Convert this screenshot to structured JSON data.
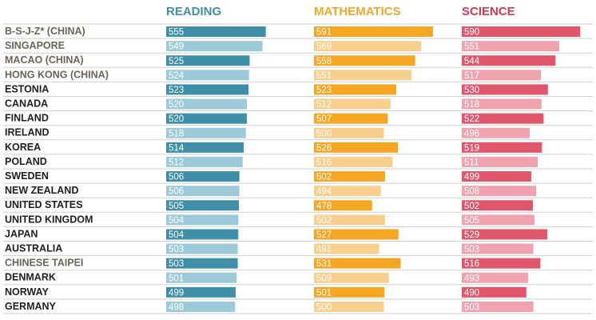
{
  "chart_data": {
    "type": "bar",
    "title": "",
    "xlabel": "",
    "ylabel": "",
    "columns": [
      {
        "key": "reading",
        "label": "READING",
        "color": "#3f8fa8",
        "light": "#9dcad8",
        "header_color": "#3f8fa8"
      },
      {
        "key": "math",
        "label": "MATHEMATICS",
        "color": "#f5a623",
        "light": "#f8cf8c",
        "header_color": "#f5a623"
      },
      {
        "key": "science",
        "label": "SCIENCE",
        "color": "#e0566b",
        "light": "#f0a2ae",
        "header_color": "#d7384f"
      }
    ],
    "categories": [
      "B-S-J-Z* (CHINA)",
      "SINGAPORE",
      "MACAO (CHINA)",
      "HONG KONG (CHINA)",
      "ESTONIA",
      "CANADA",
      "FINLAND",
      "IRELAND",
      "KOREA",
      "POLAND",
      "SWEDEN",
      "NEW ZEALAND",
      "UNITED STATES",
      "UNITED KINGDOM",
      "JAPAN",
      "AUSTRALIA",
      "CHINESE TAIPEI",
      "DENMARK",
      "NORWAY",
      "GERMANY"
    ],
    "category_style": [
      "gray",
      "gray",
      "gray",
      "gray",
      "dark",
      "dark",
      "dark",
      "dark",
      "dark",
      "dark",
      "dark",
      "dark",
      "dark",
      "dark",
      "dark",
      "dark",
      "gray",
      "dark",
      "dark",
      "dark"
    ],
    "series": [
      {
        "name": "READING",
        "values": [
          555,
          549,
          525,
          524,
          523,
          520,
          520,
          518,
          514,
          512,
          506,
          506,
          505,
          504,
          504,
          503,
          503,
          501,
          499,
          498
        ],
        "shade": [
          "dark",
          "light",
          "dark",
          "light",
          "dark",
          "light",
          "dark",
          "light",
          "dark",
          "light",
          "dark",
          "light",
          "dark",
          "light",
          "dark",
          "light",
          "dark",
          "light",
          "dark",
          "light"
        ]
      },
      {
        "name": "MATHEMATICS",
        "values": [
          591,
          569,
          558,
          551,
          523,
          512,
          507,
          500,
          526,
          516,
          502,
          494,
          478,
          502,
          527,
          491,
          531,
          509,
          501,
          500
        ],
        "shade": [
          "dark",
          "light",
          "dark",
          "light",
          "dark",
          "light",
          "dark",
          "light",
          "dark",
          "light",
          "dark",
          "light",
          "dark",
          "light",
          "dark",
          "light",
          "dark",
          "light",
          "dark",
          "light"
        ]
      },
      {
        "name": "SCIENCE",
        "values": [
          590,
          551,
          544,
          517,
          530,
          518,
          522,
          496,
          519,
          511,
          499,
          508,
          502,
          505,
          529,
          503,
          516,
          493,
          490,
          503
        ],
        "shade": [
          "dark",
          "light",
          "dark",
          "light",
          "dark",
          "light",
          "dark",
          "light",
          "dark",
          "light",
          "dark",
          "light",
          "dark",
          "light",
          "dark",
          "light",
          "dark",
          "light",
          "dark",
          "light"
        ]
      }
    ],
    "label_colors": {
      "gray": "#6d6358",
      "dark": "#1f1f1f"
    },
    "row_divider_color": "#cfcfcf",
    "scale": {
      "min": 370,
      "max": 600
    },
    "grid": false,
    "legend": "none"
  }
}
